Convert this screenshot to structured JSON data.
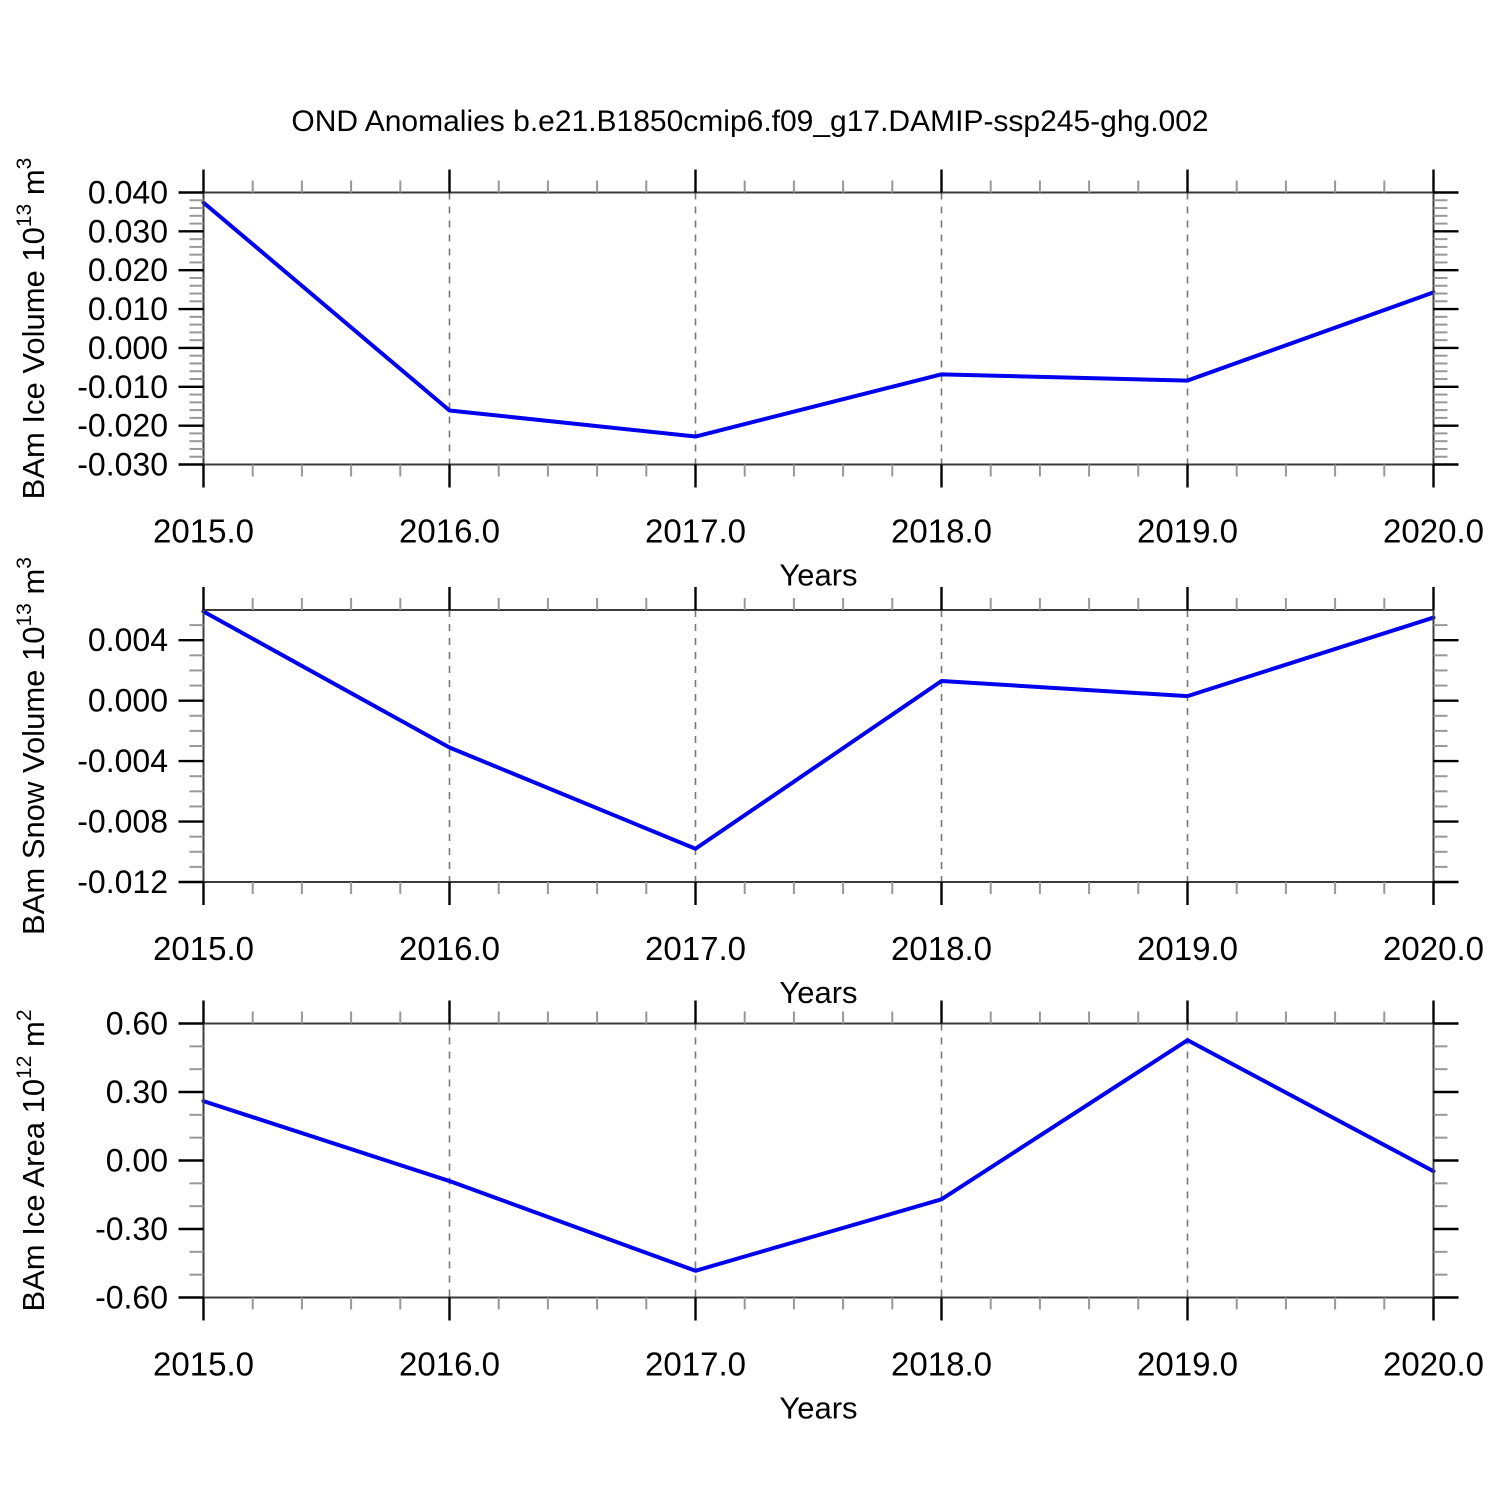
{
  "title": "OND Anomalies b.e21.B1850cmip6.f09_g17.DAMIP-ssp245-ghg.002",
  "colors": {
    "background": "#ffffff",
    "line": "#0000ee",
    "frame": "#3c3c3c",
    "tick_major": "#000000",
    "tick_minor": "#989898",
    "grid": "#787878",
    "text": "#000000"
  },
  "x_axis": {
    "label": "Years",
    "range": [
      2015,
      2020
    ],
    "tick_values": [
      2015,
      2016,
      2017,
      2018,
      2019,
      2020
    ],
    "tick_labels": [
      "2015.0",
      "2016.0",
      "2017.0",
      "2018.0",
      "2019.0",
      "2020.0"
    ],
    "minor_per_major": 4,
    "grid_years": [
      2016,
      2017,
      2018,
      2019
    ]
  },
  "chart_data": [
    {
      "type": "line",
      "name": "ice-volume",
      "ylabel": "BAm Ice Volume 10^13 m^3",
      "ylabel_parts": [
        {
          "t": "BAm Ice Volume 10"
        },
        {
          "t": "13",
          "sup": true
        },
        {
          "t": " m"
        },
        {
          "t": "3",
          "sup": true
        }
      ],
      "xlabel": "Years",
      "x": [
        2015,
        2016,
        2017,
        2018,
        2019,
        2020
      ],
      "values": [
        0.0374,
        -0.0161,
        -0.0228,
        -0.0068,
        -0.0084,
        0.0143
      ],
      "ylim": [
        -0.03,
        0.04
      ],
      "ytick_values": [
        0.04,
        0.03,
        0.02,
        0.01,
        0.0,
        -0.01,
        -0.02,
        -0.03
      ],
      "ytick_labels": [
        "0.040",
        "0.030",
        "0.020",
        "0.010",
        "0.000",
        "-0.010",
        "-0.020",
        "-0.030"
      ],
      "y_minor_step": 0.002,
      "grid": "vertical-dashed",
      "legend": "none"
    },
    {
      "type": "line",
      "name": "snow-volume",
      "ylabel": "BAm Snow Volume 10^13 m^3",
      "ylabel_parts": [
        {
          "t": "BAm Snow Volume 10"
        },
        {
          "t": "13",
          "sup": true
        },
        {
          "t": " m"
        },
        {
          "t": "3",
          "sup": true
        }
      ],
      "xlabel": "Years",
      "x": [
        2015,
        2016,
        2017,
        2018,
        2019,
        2020
      ],
      "values": [
        0.0059,
        -0.0031,
        -0.0098,
        0.0013,
        0.0003,
        0.0055
      ],
      "ylim": [
        -0.012,
        0.006
      ],
      "ytick_values": [
        0.004,
        0.0,
        -0.004,
        -0.008,
        -0.012
      ],
      "ytick_labels": [
        "0.004",
        "0.000",
        "-0.004",
        "-0.008",
        "-0.012"
      ],
      "y_minor_step": 0.001,
      "grid": "vertical-dashed",
      "legend": "none"
    },
    {
      "type": "line",
      "name": "ice-area",
      "ylabel": "BAm Ice Area 10^12 m^2",
      "ylabel_parts": [
        {
          "t": "BAm Ice Area 10"
        },
        {
          "t": "12",
          "sup": true
        },
        {
          "t": " m"
        },
        {
          "t": "2",
          "sup": true
        }
      ],
      "xlabel": "Years",
      "x": [
        2015,
        2016,
        2017,
        2018,
        2019,
        2020
      ],
      "values": [
        0.26,
        -0.09,
        -0.483,
        -0.17,
        0.527,
        -0.047
      ],
      "ylim": [
        -0.6,
        0.6
      ],
      "ytick_values": [
        0.6,
        0.3,
        0.0,
        -0.3,
        -0.6
      ],
      "ytick_labels": [
        "0.60",
        "0.30",
        "0.00",
        "-0.30",
        "-0.60"
      ],
      "y_minor_step": 0.1,
      "grid": "vertical-dashed",
      "legend": "none"
    }
  ]
}
